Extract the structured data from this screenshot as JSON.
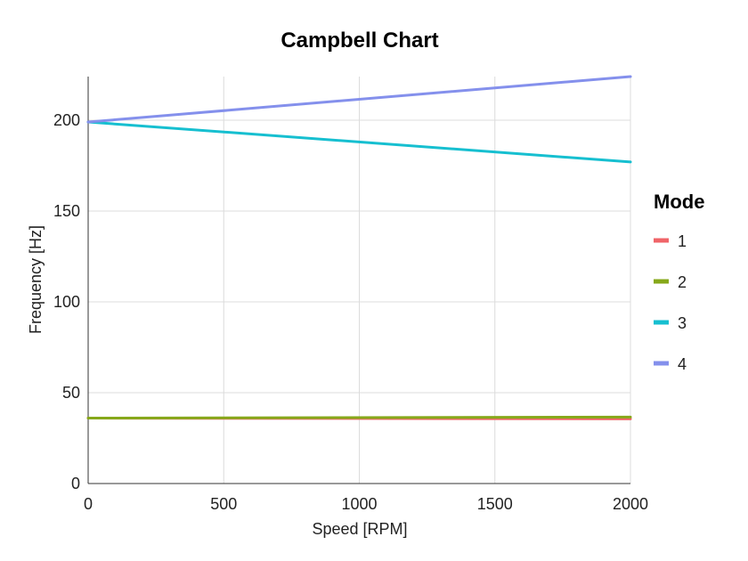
{
  "chart_data": {
    "type": "line",
    "title": "Campbell Chart",
    "xlabel": "Speed [RPM]",
    "ylabel": "Frequency [Hz]",
    "xlim": [
      0,
      2000
    ],
    "ylim": [
      0,
      224
    ],
    "xticks": [
      0,
      500,
      1000,
      1500,
      2000
    ],
    "yticks": [
      0,
      50,
      100,
      150,
      200
    ],
    "grid": true,
    "legend": {
      "title": "Mode",
      "placement": "right"
    },
    "series": [
      {
        "name": "1",
        "color": "#f06468",
        "x": [
          0,
          2000
        ],
        "y": [
          36.0,
          35.6
        ]
      },
      {
        "name": "2",
        "color": "#86a81a",
        "x": [
          0,
          2000
        ],
        "y": [
          36.0,
          36.6
        ]
      },
      {
        "name": "3",
        "color": "#16bfd0",
        "x": [
          0,
          2000
        ],
        "y": [
          199.0,
          177.0
        ]
      },
      {
        "name": "4",
        "color": "#8490ec",
        "x": [
          0,
          2000
        ],
        "y": [
          199.0,
          224.0
        ]
      }
    ]
  }
}
